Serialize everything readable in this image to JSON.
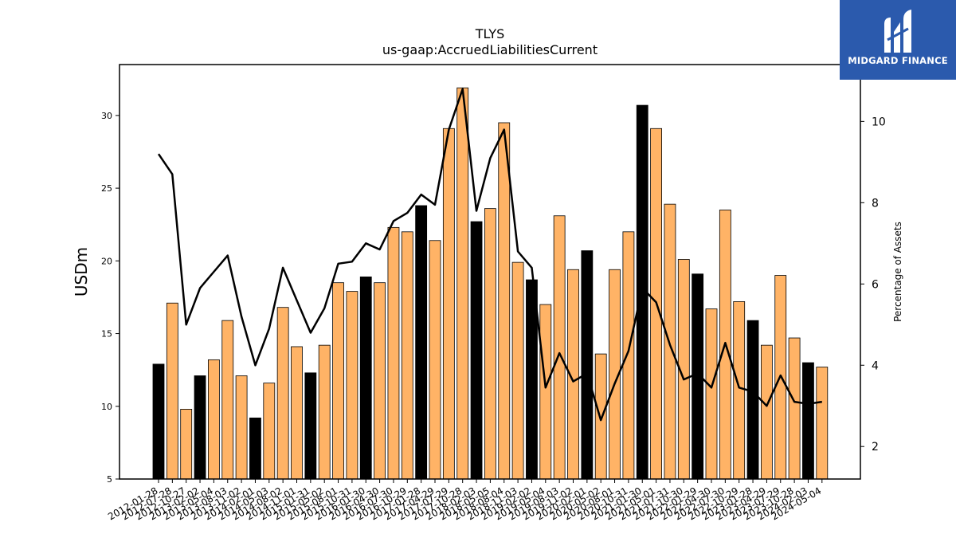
{
  "brand": {
    "name": "MIDGARD FINANCE",
    "logo_icon": "midgard-logo-icon",
    "bg_color": "#2b5aad"
  },
  "chart_data": {
    "type": "bar",
    "title": "TLYS",
    "subtitle": "us-gaap:AccruedLiabilitiesCurrent",
    "ylabel": "USDm",
    "y2label": "Percentage of Assets",
    "ylim": [
      5,
      33.5
    ],
    "y2lim": [
      1.2,
      11.4
    ],
    "yticks": [
      5,
      10,
      15,
      20,
      25,
      30
    ],
    "y2ticks": [
      2,
      4,
      6,
      8,
      10
    ],
    "grid": false,
    "colors": {
      "annual": "#000000",
      "quarter": "#ffb366",
      "line": "#000000"
    },
    "categories": [
      "2012-01-28",
      "2012-07-28",
      "2012-10-27",
      "2013-02-02",
      "2013-05-04",
      "2013-08-03",
      "2013-11-02",
      "2014-02-01",
      "2014-05-03",
      "2014-08-02",
      "2014-11-01",
      "2015-01-31",
      "2015-05-02",
      "2015-08-01",
      "2015-10-31",
      "2016-01-30",
      "2016-04-30",
      "2016-07-30",
      "2016-10-29",
      "2017-01-28",
      "2017-04-29",
      "2017-07-29",
      "2017-10-28",
      "2018-02-03",
      "2018-05-05",
      "2018-08-04",
      "2018-11-03",
      "2019-02-02",
      "2019-05-04",
      "2019-08-03",
      "2019-11-02",
      "2020-02-01",
      "2020-05-02",
      "2020-08-01",
      "2020-10-31",
      "2021-01-30",
      "2021-05-01",
      "2021-07-31",
      "2021-10-30",
      "2022-01-29",
      "2022-04-30",
      "2022-07-30",
      "2022-10-29",
      "2023-01-28",
      "2023-04-29",
      "2023-07-29",
      "2023-10-28",
      "2024-02-03",
      "2024-05-04"
    ],
    "series": [
      {
        "values": [
          12.9,
          17.1,
          9.8,
          12.1,
          13.2,
          15.9,
          12.1,
          9.2,
          11.6,
          16.8,
          14.1,
          12.3,
          14.2,
          18.5,
          17.9,
          18.9,
          18.5,
          22.3,
          22.0,
          23.8,
          21.4,
          29.1,
          31.9,
          22.7,
          23.6,
          29.5,
          19.9,
          18.7,
          17.0,
          23.1,
          19.4,
          20.7,
          13.6,
          19.4,
          22.0,
          30.7,
          29.1,
          23.9,
          20.1,
          19.1,
          16.7,
          23.5,
          17.2,
          15.9,
          14.2,
          19.0,
          14.7,
          13.0,
          12.7
        ],
        "annual_flags": [
          1,
          0,
          0,
          1,
          0,
          0,
          0,
          1,
          0,
          0,
          0,
          1,
          0,
          0,
          0,
          1,
          0,
          0,
          0,
          1,
          0,
          0,
          0,
          1,
          0,
          0,
          0,
          1,
          0,
          0,
          0,
          1,
          0,
          0,
          0,
          1,
          0,
          0,
          0,
          1,
          0,
          0,
          0,
          1,
          0,
          0,
          0,
          1,
          0
        ]
      },
      {
        "axis": "right",
        "type": "line",
        "values": [
          9.2,
          8.7,
          5.0,
          5.9,
          6.3,
          6.7,
          5.2,
          4.0,
          4.9,
          6.4,
          5.6,
          4.8,
          5.4,
          6.5,
          6.55,
          7.0,
          6.85,
          7.55,
          7.75,
          8.2,
          7.95,
          9.8,
          10.8,
          7.8,
          9.1,
          9.8,
          6.8,
          6.4,
          3.45,
          4.3,
          3.6,
          3.8,
          2.65,
          3.55,
          4.35,
          5.9,
          5.55,
          4.5,
          3.65,
          3.8,
          3.45,
          4.55,
          3.45,
          3.35,
          3.0,
          3.75,
          3.1,
          3.05,
          3.1
        ]
      }
    ]
  }
}
